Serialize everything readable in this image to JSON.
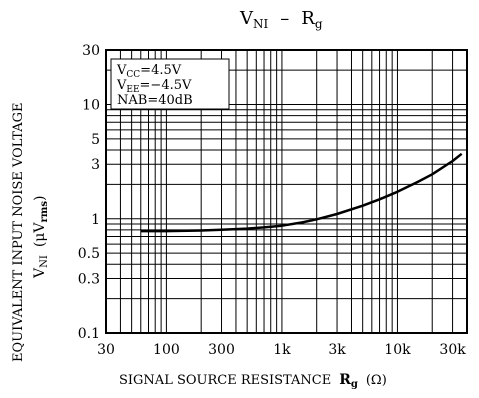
{
  "chart_data": {
    "type": "line",
    "title": {
      "main": "V",
      "main_sub": "NI",
      "dash": "–",
      "r": "R",
      "r_sub": "g"
    },
    "xlabel": {
      "text": "SIGNAL SOURCE RESISTANCE",
      "r": "R",
      "r_sub": "g",
      "unit": "(Ω)"
    },
    "ylabel": {
      "line1": "EQUIVALENT INPUT NOISE VOLTAGE",
      "v": "V",
      "v_sub": "NI",
      "unit_open": "(μV",
      "unit_sub": "rms",
      "unit_close": ")"
    },
    "x_scale": "log",
    "y_scale": "log",
    "xlim": [
      30,
      40000
    ],
    "ylim": [
      0.1,
      30
    ],
    "grid": true,
    "x_ticks": [
      {
        "value": 30,
        "label": "30"
      },
      {
        "value": 100,
        "label": "100"
      },
      {
        "value": 300,
        "label": "300"
      },
      {
        "value": 1000,
        "label": "1k"
      },
      {
        "value": 3000,
        "label": "3k"
      },
      {
        "value": 10000,
        "label": "10k"
      },
      {
        "value": 30000,
        "label": "30k"
      }
    ],
    "y_ticks": [
      {
        "value": 0.1,
        "label": "0.1"
      },
      {
        "value": 0.3,
        "label": "0.3"
      },
      {
        "value": 0.5,
        "label": "0.5"
      },
      {
        "value": 1,
        "label": "1"
      },
      {
        "value": 3,
        "label": "3"
      },
      {
        "value": 5,
        "label": "5"
      },
      {
        "value": 10,
        "label": "10"
      },
      {
        "value": 30,
        "label": "30"
      }
    ],
    "annotation": [
      {
        "main": "V",
        "sub": "CC",
        "rest": "=4.5V"
      },
      {
        "main": "V",
        "sub": "EE",
        "rest": "=−4.5V"
      },
      {
        "main": "NAB=40dB",
        "sub": "",
        "rest": ""
      }
    ],
    "series": [
      {
        "x": [
          60,
          100,
          200,
          300,
          500,
          700,
          1000,
          1500,
          2000,
          3000,
          5000,
          7000,
          10000,
          15000,
          20000,
          30000,
          36000
        ],
        "y": [
          0.78,
          0.78,
          0.79,
          0.8,
          0.82,
          0.84,
          0.87,
          0.93,
          0.99,
          1.1,
          1.3,
          1.48,
          1.72,
          2.1,
          2.45,
          3.2,
          3.7
        ]
      }
    ]
  }
}
